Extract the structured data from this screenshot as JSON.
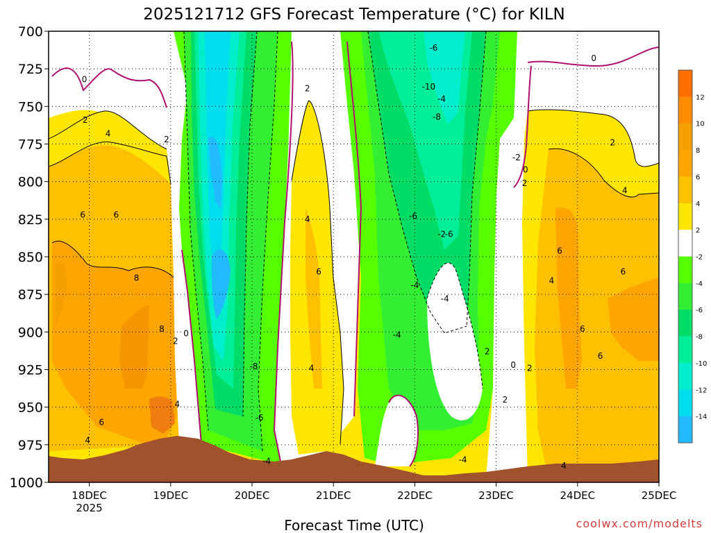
{
  "chart_data": {
    "type": "heatmap",
    "title": "2025121712 GFS Forecast Temperature (°C) for KILN",
    "xlabel": "Forecast Time (UTC)",
    "ylabel": "",
    "credit": "coolwx.com/modelts",
    "x_ticks": [
      {
        "label": "18DEC",
        "sublabel": "2025"
      },
      {
        "label": "19DEC",
        "sublabel": ""
      },
      {
        "label": "20DEC",
        "sublabel": ""
      },
      {
        "label": "21DEC",
        "sublabel": ""
      },
      {
        "label": "22DEC",
        "sublabel": ""
      },
      {
        "label": "23DEC",
        "sublabel": ""
      },
      {
        "label": "24DEC",
        "sublabel": ""
      },
      {
        "label": "25DEC",
        "sublabel": ""
      }
    ],
    "x_days": [
      -0.5,
      7.0
    ],
    "y_levels": [
      700,
      725,
      750,
      775,
      800,
      825,
      850,
      875,
      900,
      925,
      950,
      975,
      1000
    ],
    "y_range": [
      700,
      1000
    ],
    "y_inverted": true,
    "grid": true,
    "colorbar": {
      "position": "right",
      "labels": [
        "12",
        "10",
        "8",
        "6",
        "4",
        "2",
        "-2",
        "-4",
        "-6",
        "-8",
        "-10",
        "-12",
        "-14"
      ],
      "bands": [
        {
          "min": 12,
          "max": 14,
          "color": "#ff6f00"
        },
        {
          "min": 10,
          "max": 12,
          "color": "#ff8c00"
        },
        {
          "min": 8,
          "max": 10,
          "color": "#f5a000"
        },
        {
          "min": 6,
          "max": 8,
          "color": "#ffa500"
        },
        {
          "min": 4,
          "max": 6,
          "color": "#ffc000"
        },
        {
          "min": 2,
          "max": 4,
          "color": "#ffe600"
        },
        {
          "min": -2,
          "max": 2,
          "color": "#ffffff"
        },
        {
          "min": -4,
          "max": -2,
          "color": "#55ff00"
        },
        {
          "min": -6,
          "max": -4,
          "color": "#33ee33"
        },
        {
          "min": -8,
          "max": -6,
          "color": "#00dd66"
        },
        {
          "min": -10,
          "max": -8,
          "color": "#00ee99"
        },
        {
          "min": -12,
          "max": -10,
          "color": "#00eecc"
        },
        {
          "min": -14,
          "max": -12,
          "color": "#00ddee"
        },
        {
          "min": -16,
          "max": -14,
          "color": "#22bbff"
        }
      ]
    },
    "regions": [
      {
        "name": "warm-sector-early",
        "range": "2 to 8",
        "x_from": -0.5,
        "x_to": 1.05
      },
      {
        "name": "cold-sector",
        "range": "-14 to -2",
        "x_from": 1.1,
        "x_to": 2.5
      },
      {
        "name": "warm-tongue",
        "range": "2 to 6",
        "x_from": 2.5,
        "x_to": 2.95
      },
      {
        "name": "cold-sector-2",
        "range": "-10 to -2",
        "x_from": 3.2,
        "x_to": 5.3
      },
      {
        "name": "warm-sector-late",
        "range": "2 to 6",
        "x_from": 5.4,
        "x_to": 7.0
      }
    ],
    "contour_labels": [
      {
        "text": "0",
        "x": -0.06,
        "y": 732
      },
      {
        "text": "2",
        "x": -0.05,
        "y": 759
      },
      {
        "text": "4",
        "x": 0.23,
        "y": 768
      },
      {
        "text": "2",
        "x": 0.95,
        "y": 772
      },
      {
        "text": "6",
        "x": -0.08,
        "y": 822
      },
      {
        "text": "6",
        "x": 0.33,
        "y": 822
      },
      {
        "text": "8",
        "x": 0.58,
        "y": 864
      },
      {
        "text": "8",
        "x": 0.89,
        "y": 898
      },
      {
        "text": "2",
        "x": 1.06,
        "y": 906
      },
      {
        "text": "0",
        "x": 1.19,
        "y": 901
      },
      {
        "text": "4",
        "x": 1.08,
        "y": 948
      },
      {
        "text": "6",
        "x": 0.15,
        "y": 960
      },
      {
        "text": "4",
        "x": -0.02,
        "y": 972
      },
      {
        "text": "2",
        "x": 2.68,
        "y": 738
      },
      {
        "text": "4",
        "x": 2.68,
        "y": 825
      },
      {
        "text": "6",
        "x": 2.82,
        "y": 860
      },
      {
        "text": "4",
        "x": 2.73,
        "y": 924
      },
      {
        "text": "-8",
        "x": 2.02,
        "y": 923
      },
      {
        "text": "-6",
        "x": 2.09,
        "y": 957
      },
      {
        "text": "-4",
        "x": 2.18,
        "y": 986
      },
      {
        "text": "-6",
        "x": 4.23,
        "y": 711
      },
      {
        "text": "-10",
        "x": 4.17,
        "y": 737
      },
      {
        "text": "-4",
        "x": 4.33,
        "y": 745
      },
      {
        "text": "-8",
        "x": 4.27,
        "y": 757
      },
      {
        "text": "-2",
        "x": 5.25,
        "y": 784
      },
      {
        "text": "-6",
        "x": 3.98,
        "y": 823
      },
      {
        "text": "-2",
        "x": 4.33,
        "y": 835
      },
      {
        "text": "-6",
        "x": 4.42,
        "y": 835
      },
      {
        "text": "-4",
        "x": 4.0,
        "y": 869
      },
      {
        "text": "-4",
        "x": 4.37,
        "y": 878
      },
      {
        "text": "-4",
        "x": 3.78,
        "y": 902
      },
      {
        "text": "2",
        "x": 4.89,
        "y": 913
      },
      {
        "text": "0",
        "x": 5.21,
        "y": 922
      },
      {
        "text": "2",
        "x": 5.41,
        "y": 924
      },
      {
        "text": "2",
        "x": 5.11,
        "y": 945
      },
      {
        "text": "-4",
        "x": 4.59,
        "y": 985
      },
      {
        "text": "0",
        "x": 6.2,
        "y": 718
      },
      {
        "text": "2",
        "x": 6.43,
        "y": 774
      },
      {
        "text": "0",
        "x": 5.36,
        "y": 792
      },
      {
        "text": "2",
        "x": 5.35,
        "y": 801
      },
      {
        "text": "4",
        "x": 6.58,
        "y": 806
      },
      {
        "text": "6",
        "x": 5.78,
        "y": 846
      },
      {
        "text": "4",
        "x": 5.68,
        "y": 866
      },
      {
        "text": "6",
        "x": 6.56,
        "y": 860
      },
      {
        "text": "6",
        "x": 6.06,
        "y": 898
      },
      {
        "text": "6",
        "x": 6.28,
        "y": 916
      },
      {
        "text": "4",
        "x": 5.83,
        "y": 989
      }
    ],
    "terrain_color": "#a0522d"
  }
}
